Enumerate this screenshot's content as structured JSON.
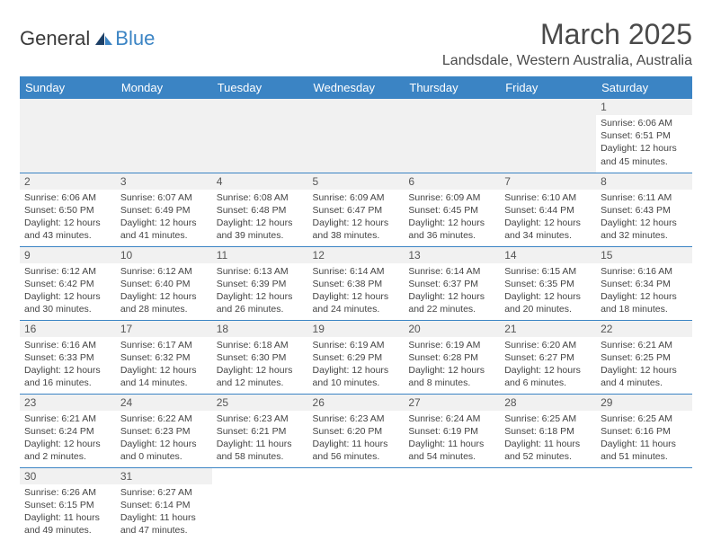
{
  "logo": {
    "text_general": "General",
    "text_blue": "Blue"
  },
  "title": "March 2025",
  "location": "Landsdale, Western Australia, Australia",
  "colors": {
    "header_bg": "#3b84c4",
    "header_fg": "#ffffff",
    "daynum_bg": "#f1f1f1",
    "border": "#3b84c4",
    "text": "#444444"
  },
  "day_headers": [
    "Sunday",
    "Monday",
    "Tuesday",
    "Wednesday",
    "Thursday",
    "Friday",
    "Saturday"
  ],
  "weeks": [
    [
      null,
      null,
      null,
      null,
      null,
      null,
      {
        "n": "1",
        "sr": "6:06 AM",
        "ss": "6:51 PM",
        "dl": "12 hours and 45 minutes."
      }
    ],
    [
      {
        "n": "2",
        "sr": "6:06 AM",
        "ss": "6:50 PM",
        "dl": "12 hours and 43 minutes."
      },
      {
        "n": "3",
        "sr": "6:07 AM",
        "ss": "6:49 PM",
        "dl": "12 hours and 41 minutes."
      },
      {
        "n": "4",
        "sr": "6:08 AM",
        "ss": "6:48 PM",
        "dl": "12 hours and 39 minutes."
      },
      {
        "n": "5",
        "sr": "6:09 AM",
        "ss": "6:47 PM",
        "dl": "12 hours and 38 minutes."
      },
      {
        "n": "6",
        "sr": "6:09 AM",
        "ss": "6:45 PM",
        "dl": "12 hours and 36 minutes."
      },
      {
        "n": "7",
        "sr": "6:10 AM",
        "ss": "6:44 PM",
        "dl": "12 hours and 34 minutes."
      },
      {
        "n": "8",
        "sr": "6:11 AM",
        "ss": "6:43 PM",
        "dl": "12 hours and 32 minutes."
      }
    ],
    [
      {
        "n": "9",
        "sr": "6:12 AM",
        "ss": "6:42 PM",
        "dl": "12 hours and 30 minutes."
      },
      {
        "n": "10",
        "sr": "6:12 AM",
        "ss": "6:40 PM",
        "dl": "12 hours and 28 minutes."
      },
      {
        "n": "11",
        "sr": "6:13 AM",
        "ss": "6:39 PM",
        "dl": "12 hours and 26 minutes."
      },
      {
        "n": "12",
        "sr": "6:14 AM",
        "ss": "6:38 PM",
        "dl": "12 hours and 24 minutes."
      },
      {
        "n": "13",
        "sr": "6:14 AM",
        "ss": "6:37 PM",
        "dl": "12 hours and 22 minutes."
      },
      {
        "n": "14",
        "sr": "6:15 AM",
        "ss": "6:35 PM",
        "dl": "12 hours and 20 minutes."
      },
      {
        "n": "15",
        "sr": "6:16 AM",
        "ss": "6:34 PM",
        "dl": "12 hours and 18 minutes."
      }
    ],
    [
      {
        "n": "16",
        "sr": "6:16 AM",
        "ss": "6:33 PM",
        "dl": "12 hours and 16 minutes."
      },
      {
        "n": "17",
        "sr": "6:17 AM",
        "ss": "6:32 PM",
        "dl": "12 hours and 14 minutes."
      },
      {
        "n": "18",
        "sr": "6:18 AM",
        "ss": "6:30 PM",
        "dl": "12 hours and 12 minutes."
      },
      {
        "n": "19",
        "sr": "6:19 AM",
        "ss": "6:29 PM",
        "dl": "12 hours and 10 minutes."
      },
      {
        "n": "20",
        "sr": "6:19 AM",
        "ss": "6:28 PM",
        "dl": "12 hours and 8 minutes."
      },
      {
        "n": "21",
        "sr": "6:20 AM",
        "ss": "6:27 PM",
        "dl": "12 hours and 6 minutes."
      },
      {
        "n": "22",
        "sr": "6:21 AM",
        "ss": "6:25 PM",
        "dl": "12 hours and 4 minutes."
      }
    ],
    [
      {
        "n": "23",
        "sr": "6:21 AM",
        "ss": "6:24 PM",
        "dl": "12 hours and 2 minutes."
      },
      {
        "n": "24",
        "sr": "6:22 AM",
        "ss": "6:23 PM",
        "dl": "12 hours and 0 minutes."
      },
      {
        "n": "25",
        "sr": "6:23 AM",
        "ss": "6:21 PM",
        "dl": "11 hours and 58 minutes."
      },
      {
        "n": "26",
        "sr": "6:23 AM",
        "ss": "6:20 PM",
        "dl": "11 hours and 56 minutes."
      },
      {
        "n": "27",
        "sr": "6:24 AM",
        "ss": "6:19 PM",
        "dl": "11 hours and 54 minutes."
      },
      {
        "n": "28",
        "sr": "6:25 AM",
        "ss": "6:18 PM",
        "dl": "11 hours and 52 minutes."
      },
      {
        "n": "29",
        "sr": "6:25 AM",
        "ss": "6:16 PM",
        "dl": "11 hours and 51 minutes."
      }
    ],
    [
      {
        "n": "30",
        "sr": "6:26 AM",
        "ss": "6:15 PM",
        "dl": "11 hours and 49 minutes."
      },
      {
        "n": "31",
        "sr": "6:27 AM",
        "ss": "6:14 PM",
        "dl": "11 hours and 47 minutes."
      },
      null,
      null,
      null,
      null,
      null
    ]
  ],
  "labels": {
    "sunrise": "Sunrise:",
    "sunset": "Sunset:",
    "daylight": "Daylight:"
  }
}
